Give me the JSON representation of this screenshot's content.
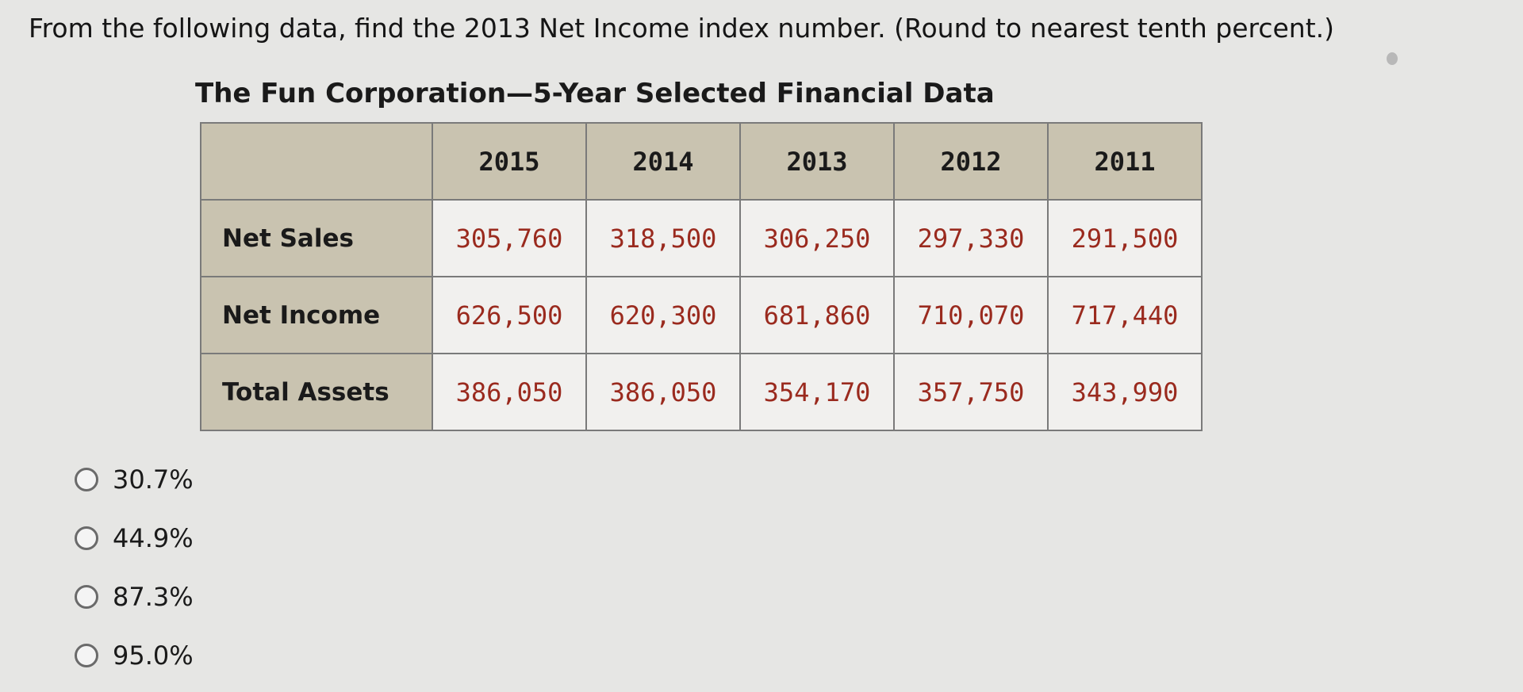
{
  "question": "From the following data, find the 2013 Net Income index number. (Round to nearest tenth percent.)",
  "table": {
    "title": "The Fun Corporation—5-Year Selected Financial Data",
    "years": [
      "2015",
      "2014",
      "2013",
      "2012",
      "2011"
    ],
    "rows": [
      {
        "label": "Net Sales",
        "values": [
          "305,760",
          "318,500",
          "306,250",
          "297,330",
          "291,500"
        ]
      },
      {
        "label": "Net Income",
        "values": [
          "626,500",
          "620,300",
          "681,860",
          "710,070",
          "717,440"
        ]
      },
      {
        "label": "Total Assets",
        "values": [
          "386,050",
          "386,050",
          "354,170",
          "357,750",
          "343,990"
        ]
      }
    ]
  },
  "choices": [
    "30.7%",
    "44.9%",
    "87.3%",
    "95.0%"
  ],
  "colors": {
    "header_bg": "#c9c3b0",
    "cell_bg": "#f1f0ee",
    "value_text": "#9a2a1e",
    "page_bg": "#e6e6e4"
  }
}
